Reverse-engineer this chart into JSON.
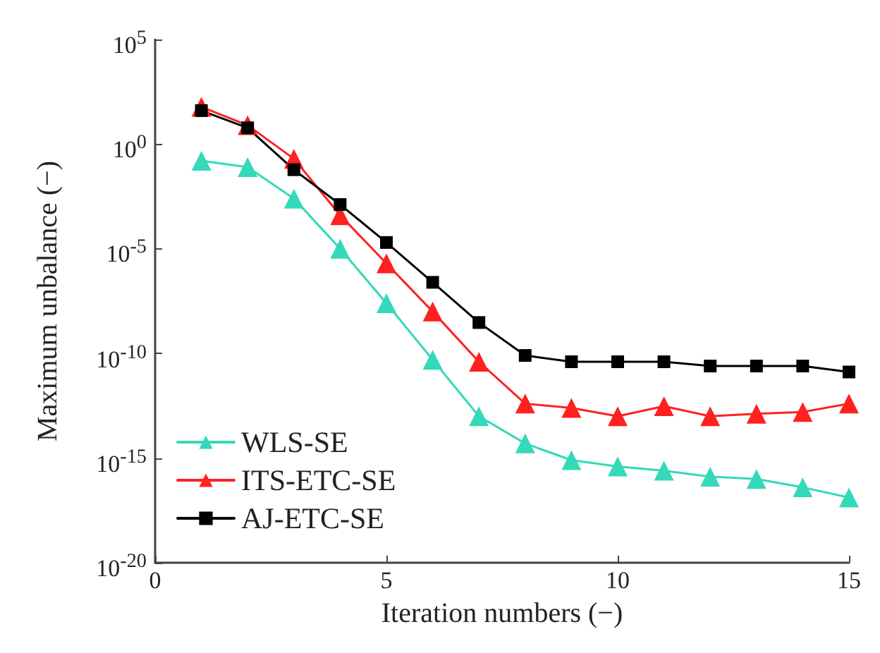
{
  "chart_data": {
    "type": "line",
    "xlabel": "Iteration numbers (−)",
    "ylabel": "Maximum unbalance (−)",
    "x": [
      1,
      2,
      3,
      4,
      5,
      6,
      7,
      8,
      9,
      10,
      11,
      12,
      13,
      14,
      15
    ],
    "series": [
      {
        "name": "WLS-SE",
        "color": "#33d9b8",
        "marker": "triangle",
        "values": [
          0.16,
          0.08,
          0.0025,
          1e-05,
          2.5e-08,
          5e-11,
          1e-13,
          5e-15,
          8e-16,
          4e-16,
          2.5e-16,
          1.3e-16,
          1e-16,
          4e-17,
          1.3e-17
        ]
      },
      {
        "name": "ITS-ETC-SE",
        "color": "#ff2020",
        "marker": "triangle",
        "values": [
          60,
          8,
          0.2,
          0.0004,
          2e-06,
          1e-08,
          4e-11,
          4e-13,
          2.5e-13,
          1e-13,
          3e-13,
          1e-13,
          1.3e-13,
          1.6e-13,
          4e-13
        ]
      },
      {
        "name": "AJ-ETC-SE",
        "color": "#000000",
        "marker": "square",
        "values": [
          40,
          6,
          0.06,
          0.0013,
          2e-05,
          2.5e-07,
          3e-09,
          8e-11,
          4e-11,
          4e-11,
          4e-11,
          2.5e-11,
          2.5e-11,
          2.5e-11,
          1.3e-11
        ]
      }
    ],
    "xlim": [
      0,
      15
    ],
    "xticks": [
      0,
      5,
      10,
      15
    ],
    "log": "y",
    "ylim": [
      1e-20,
      100000
    ],
    "yticks": [
      {
        "value": 1e-20,
        "label": "10$^{-20}$"
      },
      {
        "value": 1e-15,
        "label": "10$^{-15}$"
      },
      {
        "value": 1e-10,
        "label": "10$^{-10}$"
      },
      {
        "value": 1e-05,
        "label": "10$^{-5}$"
      },
      {
        "value": 1,
        "label": "10$^{0}$"
      },
      {
        "value": 100000,
        "label": "10$^{5}$"
      }
    ],
    "legend": "bottom left",
    "grid": false,
    "line_style": "solid"
  }
}
